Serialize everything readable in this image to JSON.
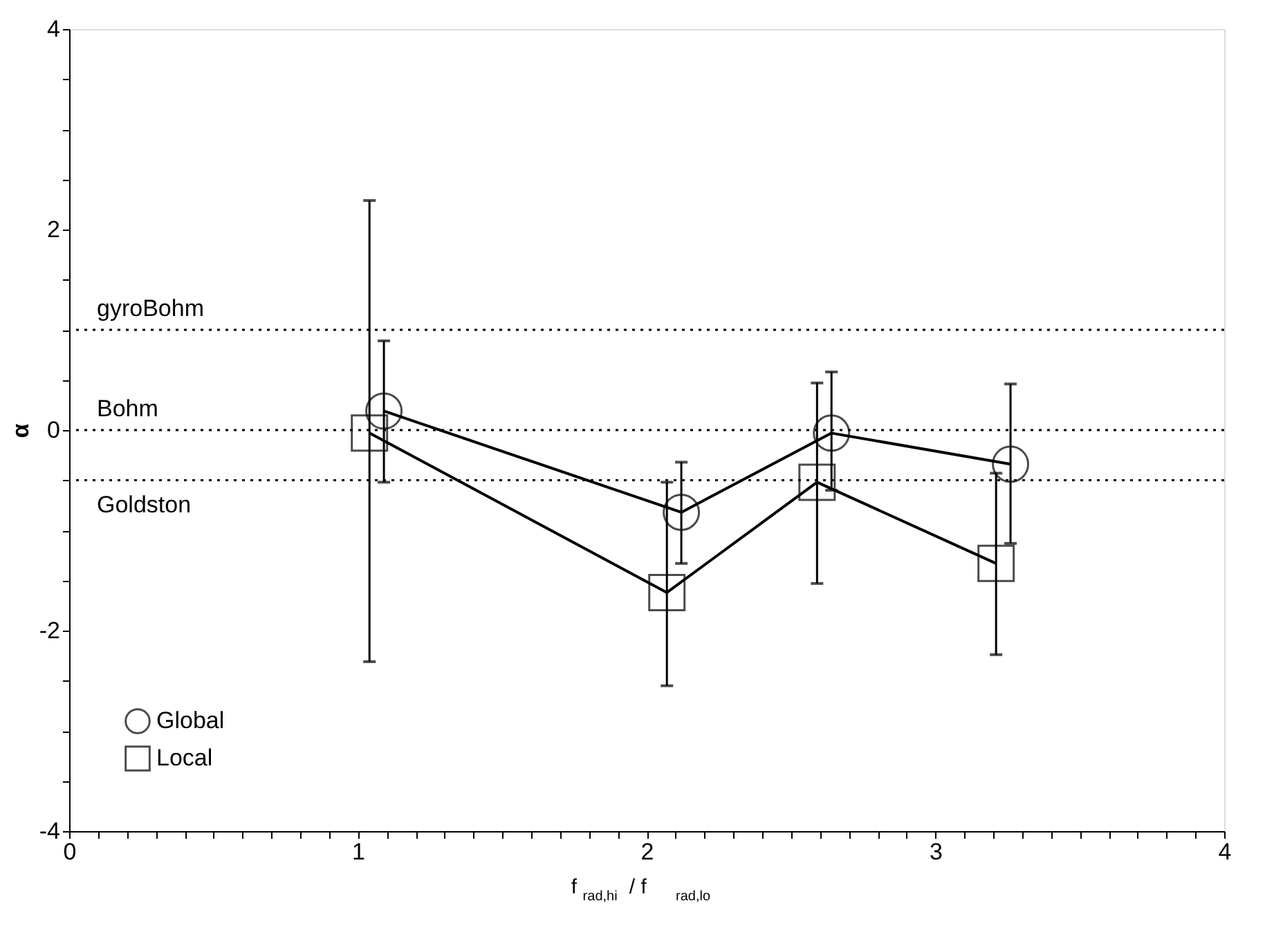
{
  "chart_data": {
    "type": "line",
    "xlabel": "f$_{rad,hi}$ / f$_{rad,lo}$",
    "ylabel": "α",
    "series": [
      {
        "name": "Global",
        "color": "#000000",
        "marker": "circle",
        "x": [
          1.09,
          2.12,
          2.64,
          3.26
        ],
        "values": [
          0.19,
          -0.82,
          -0.03,
          -0.34
        ],
        "errors": [
          [
            -0.52,
            0.89
          ],
          [
            -1.33,
            -0.32
          ],
          [
            -0.6,
            0.58
          ],
          [
            -1.13,
            0.46
          ]
        ]
      },
      {
        "name": "Local",
        "color": "#000000",
        "marker": "square",
        "x": [
          1.04,
          2.07,
          2.59,
          3.21
        ],
        "values": [
          -0.03,
          -1.62,
          -0.52,
          -1.33
        ],
        "errors": [
          [
            -2.31,
            2.29
          ],
          [
            -2.55,
            -0.52
          ],
          [
            -1.53,
            0.47
          ],
          [
            -2.24,
            -0.43
          ]
        ]
      }
    ],
    "ref_lines": [
      {
        "axis": "y",
        "value": 1,
        "label": "gyroBohm",
        "color": "#000000",
        "line_style": "dotted"
      },
      {
        "axis": "y",
        "value": 0,
        "label": "Bohm",
        "color": "#000000",
        "line_style": "dotted"
      },
      {
        "axis": "y",
        "value": -0.5,
        "label": "Goldston",
        "color": "#000000",
        "line_style": "dotted"
      }
    ],
    "xlim": [
      0,
      4
    ],
    "ylim": [
      -4,
      4
    ],
    "xticks": [
      0,
      {
        "value": 0.1,
        "label": null
      },
      {
        "value": 0.2,
        "label": null
      },
      {
        "value": 0.3,
        "label": null
      },
      {
        "value": 0.4,
        "label": null
      },
      {
        "value": 0.5,
        "label": null
      },
      {
        "value": 0.6,
        "label": null
      },
      {
        "value": 0.7,
        "label": null
      },
      {
        "value": 0.8,
        "label": null
      },
      {
        "value": 0.9,
        "label": null
      },
      1,
      {
        "value": 1.1,
        "label": null
      },
      {
        "value": 1.2,
        "label": null
      },
      {
        "value": 1.3,
        "label": null
      },
      {
        "value": 1.4,
        "label": null
      },
      {
        "value": 1.5,
        "label": null
      },
      {
        "value": 1.6,
        "label": null
      },
      {
        "value": 1.7,
        "label": null
      },
      {
        "value": 1.8,
        "label": null
      },
      {
        "value": 1.9,
        "label": null
      },
      2,
      {
        "value": 2.1,
        "label": null
      },
      {
        "value": 2.2,
        "label": null
      },
      {
        "value": 2.3,
        "label": null
      },
      {
        "value": 2.4,
        "label": null
      },
      {
        "value": 2.5,
        "label": null
      },
      {
        "value": 2.6,
        "label": null
      },
      {
        "value": 2.7,
        "label": null
      },
      {
        "value": 2.8,
        "label": null
      },
      {
        "value": 2.9,
        "label": null
      },
      3,
      {
        "value": 3.1,
        "label": null
      },
      {
        "value": 3.2,
        "label": null
      },
      {
        "value": 3.3,
        "label": null
      },
      {
        "value": 3.4,
        "label": null
      },
      {
        "value": 3.5,
        "label": null
      },
      {
        "value": 3.6,
        "label": null
      },
      {
        "value": 3.7,
        "label": null
      },
      {
        "value": 3.8,
        "label": null
      },
      {
        "value": 3.9,
        "label": null
      },
      4
    ],
    "yticks": [
      -4,
      {
        "value": -3.5,
        "label": null
      },
      {
        "value": -3,
        "label": null
      },
      {
        "value": -2.5,
        "label": null
      },
      -2,
      {
        "value": -1.5,
        "label": null
      },
      {
        "value": -1,
        "label": null
      },
      {
        "value": -0.5,
        "label": null
      },
      0,
      {
        "value": 0.5,
        "label": null
      },
      {
        "value": 1,
        "label": null
      },
      {
        "value": 1.5,
        "label": null
      },
      2,
      {
        "value": 2.5,
        "label": null
      },
      {
        "value": 3,
        "label": null
      },
      {
        "value": 3.5,
        "label": null
      },
      4
    ],
    "legend": "bottom left",
    "grid": false,
    "line_style": "solid"
  }
}
